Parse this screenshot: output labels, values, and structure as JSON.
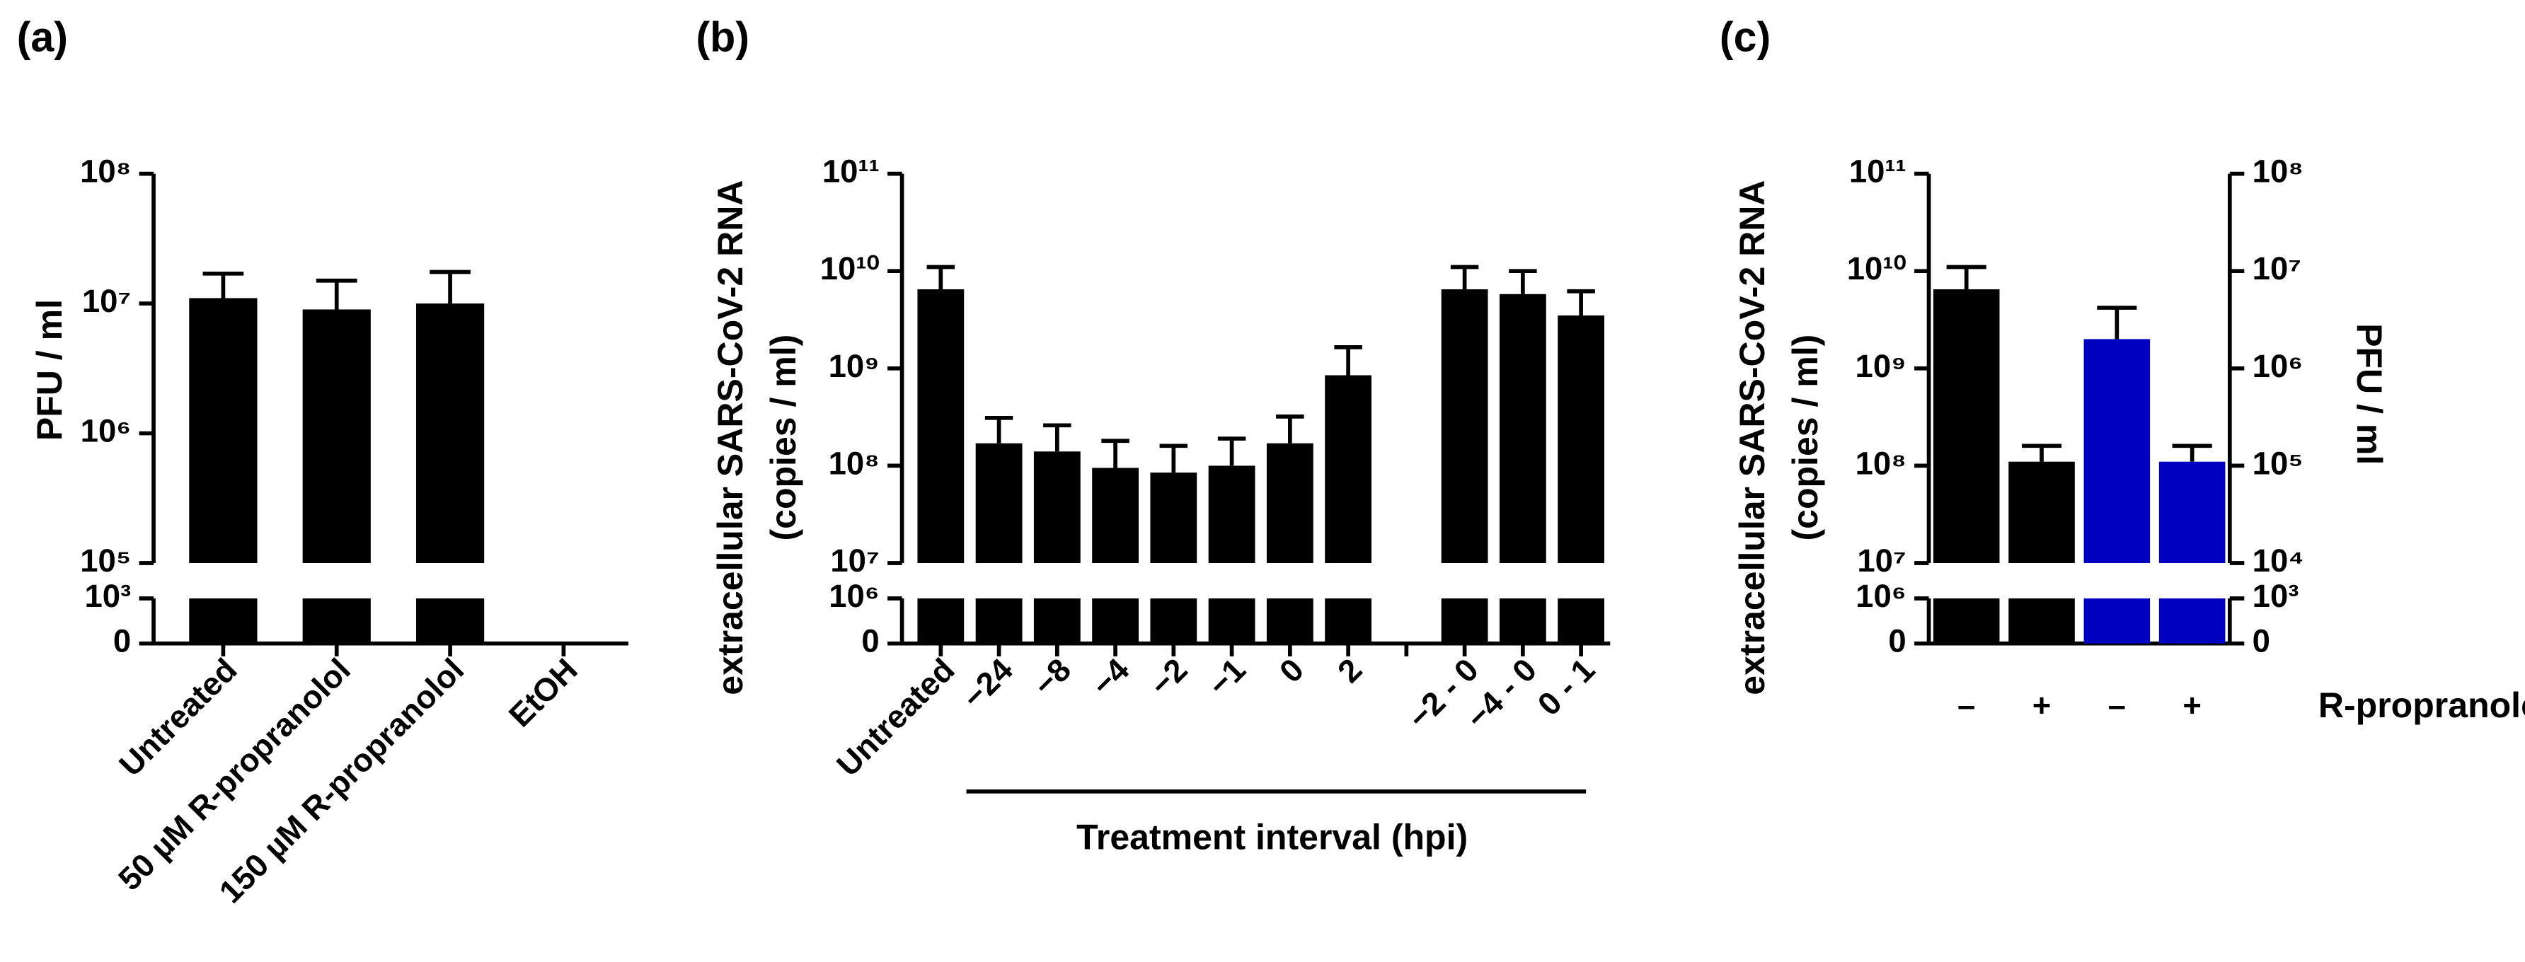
{
  "chart_data": [
    {
      "type": "bar",
      "title": "(a)",
      "ylabel": [
        "PFU / ml"
      ],
      "categories": [
        "Untreated",
        "50 µM R-propranolol",
        "150 µM R-propranolol",
        "EtOH"
      ],
      "values": [
        11000000,
        9000000,
        10000000,
        0
      ],
      "errors": [
        6000000,
        6000000,
        7500000,
        null
      ],
      "color": "#000000",
      "log": true,
      "ylim": [
        100000,
        100000000
      ],
      "yticks": [
        {
          "value": 100000,
          "label": "10⁵"
        },
        {
          "value": 1000000,
          "label": "10⁶"
        },
        {
          "value": 10000000,
          "label": "10⁷"
        },
        {
          "value": 100000000,
          "label": "10⁸"
        }
      ],
      "ylim_break": [
        0,
        1000
      ],
      "yticks_break": [
        0,
        {
          "value": 1000,
          "label": "10³"
        }
      ]
    },
    {
      "type": "bar",
      "title": "(b)",
      "ylabel": [
        "extracellular SARS-CoV-2 RNA",
        "(copies / ml)"
      ],
      "xlabel": "Treatment interval (hpi)",
      "categories": [
        "Untreated",
        "−24",
        "−8",
        "−4",
        "−2",
        "−1",
        "0",
        "2",
        null,
        "−2 - 0",
        "−4 - 0",
        "0 - 1"
      ],
      "values": [
        6500000000,
        170000000,
        140000000,
        95000000,
        85000000,
        100000000,
        170000000,
        850000000,
        null,
        6500000000,
        5800000000,
        3500000000
      ],
      "errors": [
        4500000000,
        140000000,
        120000000,
        85000000,
        75000000,
        90000000,
        150000000,
        800000000,
        null,
        4500000000,
        4200000000,
        2700000000
      ],
      "color": "#000000",
      "log": true,
      "ylim": [
        10000000,
        100000000000
      ],
      "yticks": [
        {
          "value": 10000000,
          "label": "10⁷"
        },
        {
          "value": 100000000,
          "label": "10⁸"
        },
        {
          "value": 1000000000,
          "label": "10⁹"
        },
        {
          "value": 10000000000,
          "label": "10¹⁰"
        },
        {
          "value": 100000000000,
          "label": "10¹¹"
        }
      ],
      "ylim_break": [
        0,
        1000000
      ],
      "yticks_break": [
        0,
        {
          "value": 1000000,
          "label": "10⁶"
        }
      ]
    },
    {
      "type": "bar",
      "title": "(c)",
      "ylabel": [
        "extracellular SARS-CoV-2 RNA",
        "(copies / ml)"
      ],
      "y2label": "PFU / ml",
      "xlabel": "R-propranolol",
      "categories": [
        "–",
        "+",
        "–",
        "+"
      ],
      "series": [
        {
          "color": "#000000",
          "values": [
            6500000000,
            110000000,
            null,
            null
          ],
          "errors": [
            4500000000,
            50000000,
            null,
            null
          ]
        },
        {
          "color": "#0000c0",
          "axis": "y2",
          "values": [
            null,
            null,
            2000000,
            110000
          ],
          "errors": [
            null,
            null,
            2200000,
            50000
          ]
        }
      ],
      "log": true,
      "ylim": [
        10000000,
        100000000000
      ],
      "yticks": [
        {
          "value": 10000000,
          "label": "10⁷"
        },
        {
          "value": 100000000,
          "label": "10⁸"
        },
        {
          "value": 1000000000,
          "label": "10⁹"
        },
        {
          "value": 10000000000,
          "label": "10¹⁰"
        },
        {
          "value": 100000000000,
          "label": "10¹¹"
        }
      ],
      "ylim_break": [
        0,
        1000000
      ],
      "yticks_break": [
        0,
        {
          "value": 1000000,
          "label": "10⁶"
        }
      ],
      "y2lim": [
        10000,
        100000000
      ],
      "y2ticks": [
        {
          "value": 10000,
          "label": "10⁴"
        },
        {
          "value": 100000,
          "label": "10⁵"
        },
        {
          "value": 1000000,
          "label": "10⁶"
        },
        {
          "value": 10000000,
          "label": "10⁷"
        },
        {
          "value": 100000000,
          "label": "10⁸"
        }
      ],
      "y2lim_break": [
        0,
        1000
      ],
      "y2ticks_break": [
        0,
        {
          "value": 1000,
          "label": "10³"
        }
      ]
    }
  ]
}
